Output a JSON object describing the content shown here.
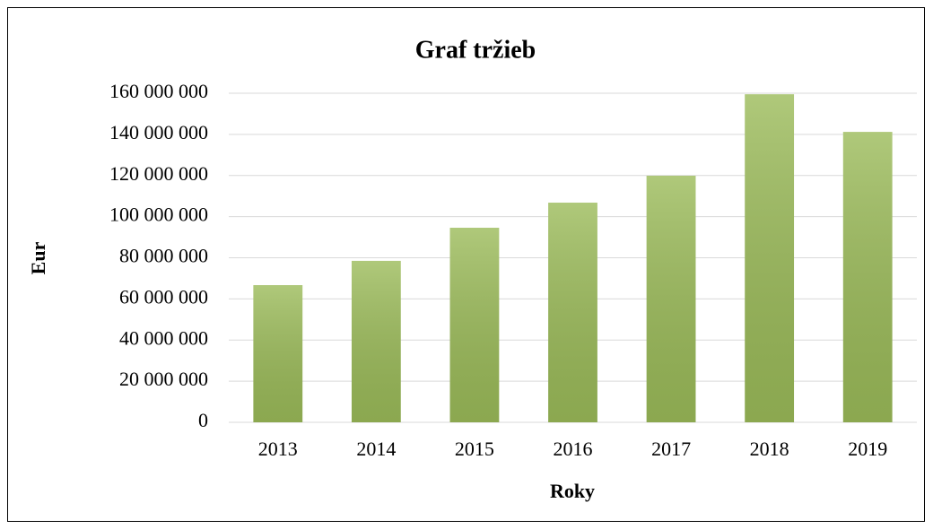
{
  "chart_data": {
    "type": "bar",
    "title": "Graf tržieb",
    "x_label": "Roky",
    "y_label": "Eur",
    "categories": [
      "2013",
      "2014",
      "2015",
      "2016",
      "2017",
      "2018",
      "2019"
    ],
    "values": [
      66700000,
      78500000,
      94600000,
      106800000,
      119900000,
      159500000,
      141200000
    ],
    "color": "#9bbb59",
    "ylim": [
      0,
      160000000
    ],
    "yticks": [
      0,
      {
        "value": 20000000,
        "label": "20 000 000"
      },
      {
        "value": 40000000,
        "label": "40 000 000"
      },
      {
        "value": 60000000,
        "label": "60 000 000"
      },
      {
        "value": 80000000,
        "label": "80 000 000"
      },
      {
        "value": 100000000,
        "label": "100 000 000"
      },
      {
        "value": 120000000,
        "label": "120 000 000"
      },
      {
        "value": 140000000,
        "label": "140 000 000"
      },
      {
        "value": 160000000,
        "label": "160 000 000"
      }
    ],
    "grid": true
  }
}
